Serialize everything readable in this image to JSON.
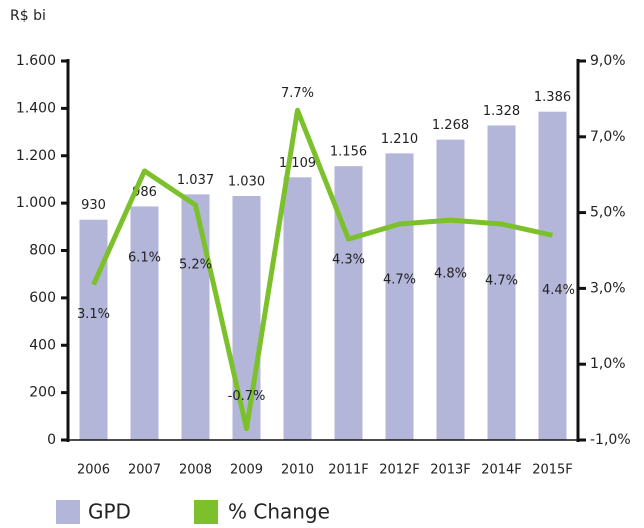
{
  "chart_data": {
    "type": "bar_line",
    "title": "R$ bi",
    "categories": [
      "2006",
      "2007",
      "2008",
      "2009",
      "2010",
      "2011F",
      "2012F",
      "2013F",
      "2014F",
      "2015F"
    ],
    "series": [
      {
        "name": "GPD",
        "type": "bar",
        "color": "#b4b6d9",
        "values": [
          930,
          986,
          1037,
          1030,
          1109,
          1156,
          1210,
          1268,
          1328,
          1386
        ],
        "value_labels": [
          "930",
          "986",
          "1.037",
          "1.030",
          "1.109",
          "1.156",
          "1.210",
          "1.268",
          "1.328",
          "1.386"
        ]
      },
      {
        "name": "% Change",
        "type": "line",
        "axis": "y2",
        "color": "#7cc12c",
        "values": [
          3.1,
          6.1,
          5.2,
          -0.7,
          7.7,
          4.3,
          4.7,
          4.8,
          4.7,
          4.4
        ],
        "value_labels": [
          "3.1%",
          "6.1%",
          "5.2%",
          "-0.7%",
          "7.7%",
          "4.3%",
          "4.7%",
          "4.8%",
          "4.7%",
          "4.4%"
        ]
      }
    ],
    "ylim": [
      0,
      1600
    ],
    "yticks": [
      0,
      200,
      400,
      600,
      800,
      {
        "value": 1000,
        "label": "1.000"
      },
      {
        "value": 1200,
        "label": "1.200"
      },
      {
        "value": 1400,
        "label": "1.400"
      },
      {
        "value": 1600,
        "label": "1.600"
      }
    ],
    "y2lim": [
      -1,
      9
    ],
    "y2ticks": [
      {
        "value": -1,
        "label": "-1,0%"
      },
      {
        "value": 1,
        "label": "1,0%"
      },
      {
        "value": 3,
        "label": "3,0%"
      },
      {
        "value": 5,
        "label": "5,0%"
      },
      {
        "value": 7,
        "label": "7,0%"
      },
      {
        "value": 9,
        "label": "9,0%"
      }
    ],
    "grid": false,
    "legend": "bottom"
  }
}
